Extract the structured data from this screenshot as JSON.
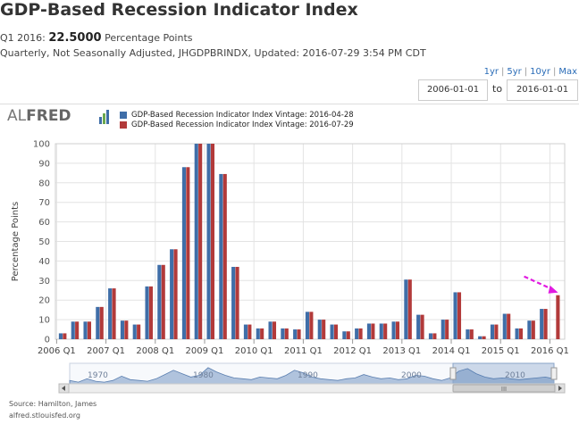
{
  "title": "GDP-Based Recession Indicator Index",
  "value_line": {
    "period_label": "Q1 2016:",
    "value": "22.5000",
    "units": "Percentage Points"
  },
  "meta_line": "Quarterly, Not Seasonally Adjusted, JHGDPBRINDX, Updated: 2016-07-29 3:54 PM CDT",
  "range_links": [
    "1yr",
    "5yr",
    "10yr",
    "Max"
  ],
  "date_range": {
    "start": "2006-01-01",
    "to_label": "to",
    "end": "2016-01-01"
  },
  "logo": {
    "prefix": "AL",
    "suffix": "FRED"
  },
  "colors": {
    "vintage_old": "#3f6ea8",
    "vintage_new": "#b23a3a",
    "annotation_arrow": "#e11be1",
    "navigator_fill": "#9db5d4"
  },
  "chart_data": {
    "type": "bar",
    "ylabel": "Percentage Points",
    "ylim": [
      0,
      100
    ],
    "yticks": [
      0,
      10,
      20,
      30,
      40,
      50,
      60,
      70,
      80,
      90,
      100
    ],
    "xtick_labels": [
      "2006 Q1",
      "2007 Q1",
      "2008 Q1",
      "2009 Q1",
      "2010 Q1",
      "2011 Q1",
      "2012 Q1",
      "2013 Q1",
      "2014 Q1",
      "2015 Q1",
      "2016 Q1"
    ],
    "grid": true,
    "legend_position": "top",
    "categories": [
      "2006 Q1",
      "2006 Q2",
      "2006 Q3",
      "2006 Q4",
      "2007 Q1",
      "2007 Q2",
      "2007 Q3",
      "2007 Q4",
      "2008 Q1",
      "2008 Q2",
      "2008 Q3",
      "2008 Q4",
      "2009 Q1",
      "2009 Q2",
      "2009 Q3",
      "2009 Q4",
      "2010 Q1",
      "2010 Q2",
      "2010 Q3",
      "2010 Q4",
      "2011 Q1",
      "2011 Q2",
      "2011 Q3",
      "2011 Q4",
      "2012 Q1",
      "2012 Q2",
      "2012 Q3",
      "2012 Q4",
      "2013 Q1",
      "2013 Q2",
      "2013 Q3",
      "2013 Q4",
      "2014 Q1",
      "2014 Q2",
      "2014 Q3",
      "2014 Q4",
      "2015 Q1",
      "2015 Q2",
      "2015 Q3",
      "2015 Q4",
      "2016 Q1"
    ],
    "series": [
      {
        "name": "GDP-Based Recession Indicator Index Vintage: 2016-04-28",
        "values": [
          3,
          9,
          9,
          16.5,
          26,
          9.5,
          7.5,
          27,
          38,
          46,
          88,
          100,
          100,
          84.5,
          37,
          7.5,
          5.5,
          9,
          5.5,
          5,
          14,
          10,
          7.5,
          4,
          5.5,
          8,
          8,
          9,
          30.5,
          12.5,
          3,
          10,
          24,
          5,
          1.5,
          7.5,
          13,
          5.5,
          9.5,
          15.5,
          null
        ]
      },
      {
        "name": "GDP-Based Recession Indicator Index Vintage: 2016-07-29",
        "values": [
          3,
          9,
          9,
          16.5,
          26,
          9.5,
          7.5,
          27,
          38,
          46,
          88,
          100,
          100,
          84.5,
          37,
          7.5,
          5.5,
          9,
          5.5,
          5,
          14,
          10,
          7.5,
          4,
          5.5,
          8,
          8,
          9,
          30.5,
          12.5,
          3,
          10,
          24,
          5,
          1.5,
          7.5,
          13,
          5.5,
          9.5,
          15.5,
          22.5
        ]
      }
    ]
  },
  "navigator": {
    "labels": [
      "1970",
      "1980",
      "1990",
      "2000",
      "2010"
    ],
    "scroll_handle_label": "III"
  },
  "footer": {
    "source": "Source: Hamilton, James",
    "url": "alfred.stlouisfed.org"
  }
}
